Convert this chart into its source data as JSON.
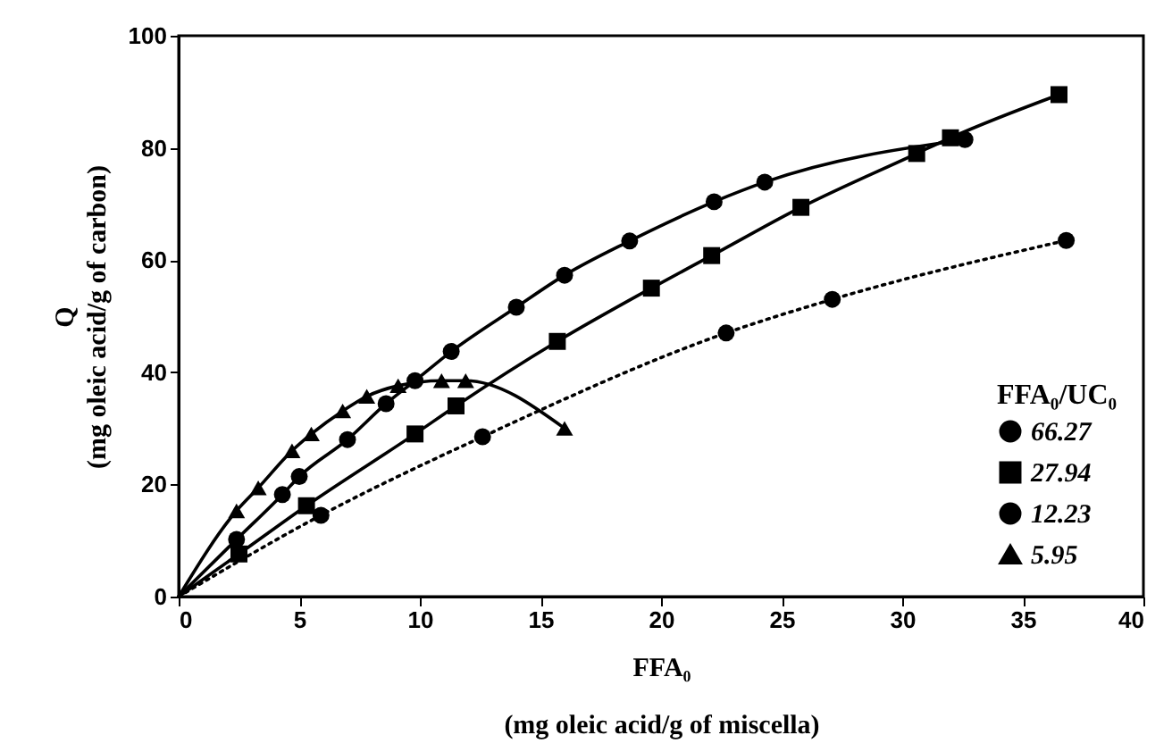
{
  "chart_data": {
    "type": "line",
    "xlabel": "FFA₀\n(mg oleic acid/g of miscella)",
    "ylabel": "Q\n(mg oleic acid/g of carbon)",
    "legend_title": "FFA₀/UC₀",
    "xlim": [
      0,
      40
    ],
    "xticks": [
      0,
      5,
      10,
      15,
      20,
      25,
      30,
      35,
      40
    ],
    "ylim": [
      0,
      100
    ],
    "yticks": [
      0,
      20,
      40,
      60,
      80,
      100
    ],
    "grid": false,
    "legend": "bottom right",
    "series": [
      {
        "name": "66.27",
        "color": "#000000",
        "marker": "circle",
        "line_style": "dotted",
        "x": [
          0,
          5.9,
          12.6,
          22.7,
          27.1,
          36.8
        ],
        "values": [
          0,
          14.5,
          28.5,
          47,
          53,
          63.5
        ]
      },
      {
        "name": "27.94",
        "color": "#000000",
        "marker": "square",
        "line_style": "solid",
        "x": [
          0,
          2.5,
          5.3,
          9.8,
          11.5,
          15.7,
          19.6,
          22.1,
          25.8,
          30.6,
          32,
          36.5
        ],
        "values": [
          0,
          7.6,
          16.2,
          29,
          34,
          45.5,
          55,
          60.8,
          69.4,
          79,
          81.8,
          89.5
        ]
      },
      {
        "name": "12.23",
        "color": "#000000",
        "marker": "circle",
        "line_style": "solid",
        "x": [
          0,
          2.4,
          4.3,
          5,
          7,
          8.6,
          9.8,
          11.3,
          14,
          16,
          18.7,
          22.2,
          24.3,
          32.6
        ],
        "values": [
          0,
          10.2,
          18.2,
          21.4,
          28,
          34.4,
          38.5,
          43.7,
          51.6,
          57.3,
          63.4,
          70.4,
          73.9,
          81.5
        ]
      },
      {
        "name": "5.95",
        "color": "#000000",
        "marker": "triangle",
        "line_style": "solid",
        "x": [
          0,
          2.4,
          3.3,
          4.7,
          5.5,
          6.8,
          7.8,
          9.1,
          10.9,
          11.9,
          16
        ],
        "values": [
          0,
          15.3,
          19.4,
          26,
          29,
          33.1,
          35.7,
          37.6,
          38.5,
          38.5,
          30
        ]
      }
    ]
  }
}
